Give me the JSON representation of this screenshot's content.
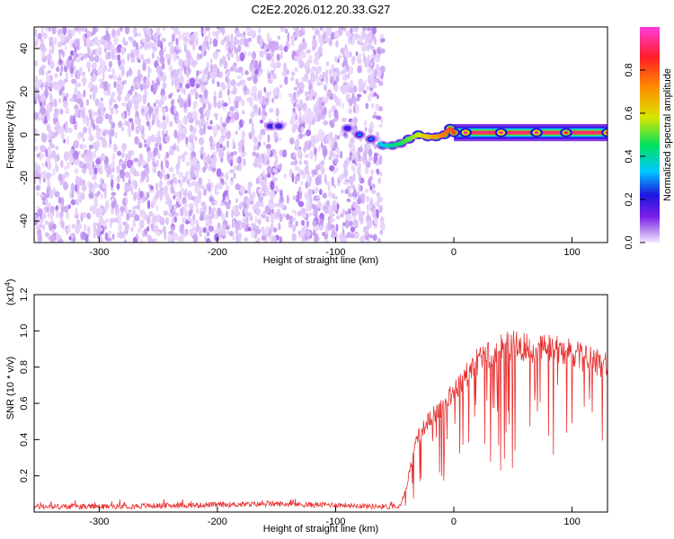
{
  "figure_title": "C2E2.2026.012.20.33.G27",
  "chart_data": [
    {
      "type": "heatmap",
      "title": "C2E2.2026.012.20.33.G27",
      "xlabel": "Height of straight line (km)",
      "ylabel": "Frequency (Hz)",
      "xlim": [
        -355,
        130
      ],
      "ylim": [
        -50,
        50
      ],
      "x_ticks": [
        -300,
        -200,
        -100,
        0,
        100
      ],
      "y_ticks": [
        -40,
        -20,
        0,
        20,
        40
      ],
      "x_tick_labels": [
        "-300",
        "-200",
        "-100",
        "0",
        "100"
      ],
      "y_tick_labels": [
        "-40",
        "-20",
        "0",
        "20",
        "40"
      ],
      "colorbar": {
        "label": "Normalized spectral amplitude",
        "range": [
          0,
          1
        ],
        "ticks": [
          0.0,
          0.2,
          0.4,
          0.6,
          0.8
        ],
        "tick_labels": [
          "0.0",
          "0.2",
          "0.4",
          "0.6",
          "0.8"
        ],
        "colormap": [
          "#f4e6ff",
          "#c9a5f2",
          "#7a1fe8",
          "#1f16e0",
          "#00c8ff",
          "#00e060",
          "#d8e600",
          "#ff8c00",
          "#ff1e28",
          "#ff3cdc"
        ]
      },
      "noise_region_x": [
        -355,
        -60
      ],
      "noise_gap_x": [
        -145,
        -138
      ],
      "signal_track": {
        "x": [
          -155,
          -148,
          -90,
          -80,
          -70,
          -60,
          -52,
          -45,
          -38,
          -30,
          -22,
          -15,
          -8,
          -3,
          0,
          10,
          40,
          70,
          95,
          130
        ],
        "y": [
          4,
          4,
          3,
          0,
          -2,
          -5,
          -5,
          -4,
          -2,
          0,
          -1,
          -1,
          0,
          3,
          1,
          1,
          1,
          1,
          1,
          1
        ],
        "amplitude": [
          0.35,
          0.35,
          0.35,
          0.4,
          0.4,
          0.45,
          0.5,
          0.55,
          0.7,
          0.8,
          0.7,
          0.75,
          0.8,
          0.85,
          0.9,
          0.95,
          0.95,
          0.95,
          0.9,
          0.95
        ]
      }
    },
    {
      "type": "line",
      "xlabel": "Height of straight line (km)",
      "ylabel": "SNR (10 * v/v)",
      "scale_label": "(x10",
      "scale_exponent": "4",
      "scale_suffix": ")",
      "xlim": [
        -355,
        130
      ],
      "ylim": [
        0,
        1.2
      ],
      "x_ticks": [
        -300,
        -200,
        -100,
        0,
        100
      ],
      "y_ticks": [
        0.2,
        0.4,
        0.6,
        0.8,
        1.0,
        1.2
      ],
      "x_tick_labels": [
        "-300",
        "-200",
        "-100",
        "0",
        "100"
      ],
      "y_tick_labels": [
        "0.2",
        "0.4",
        "0.6",
        "0.8",
        "1.0",
        "1.2"
      ],
      "color": "#e83232",
      "series": [
        {
          "name": "SNR",
          "x": [
            -355,
            -300,
            -250,
            -200,
            -150,
            -120,
            -100,
            -80,
            -60,
            -45,
            -40,
            -35,
            -30,
            -20,
            -10,
            0,
            10,
            20,
            30,
            40,
            50,
            60,
            70,
            80,
            90,
            100,
            110,
            120,
            130
          ],
          "y": [
            0.03,
            0.03,
            0.035,
            0.04,
            0.045,
            0.04,
            0.04,
            0.035,
            0.03,
            0.03,
            0.15,
            0.32,
            0.45,
            0.55,
            0.62,
            0.7,
            0.8,
            0.88,
            0.93,
            0.97,
            0.98,
            0.97,
            0.96,
            0.96,
            0.95,
            0.93,
            0.9,
            0.88,
            0.87
          ]
        }
      ]
    }
  ]
}
